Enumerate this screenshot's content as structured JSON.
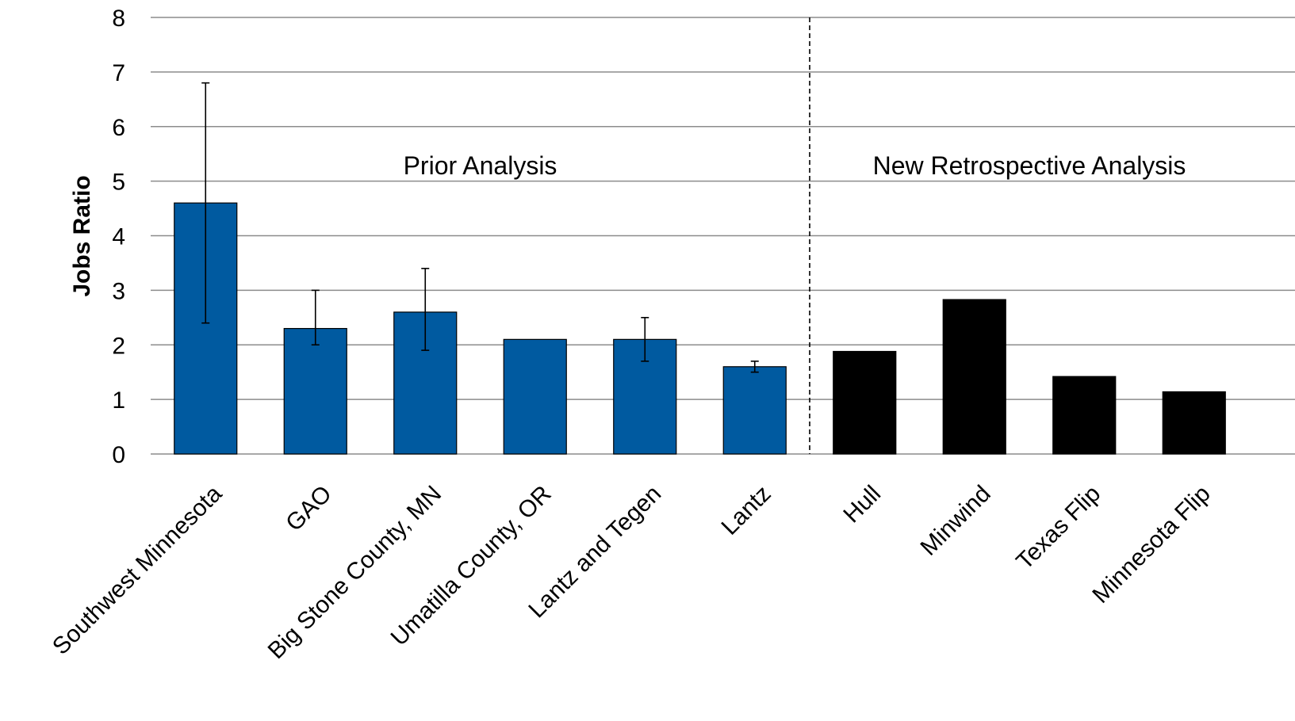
{
  "chart_data": {
    "type": "bar",
    "title": "",
    "xlabel": "",
    "ylabel": "Jobs Ratio",
    "ylim": [
      0,
      8
    ],
    "yticks": [
      "0",
      "1",
      "2",
      "3",
      "4",
      "5",
      "6",
      "7",
      "8"
    ],
    "grid": true,
    "categories": [
      "Southwest Minnesota",
      "GAO",
      "Big Stone County, MN",
      "Umatilla County, OR",
      "Lantz and Tegen",
      "Lantz",
      "Hull",
      "Minwind",
      "Texas Flip",
      "Minnesota Flip"
    ],
    "values": [
      4.6,
      2.3,
      2.6,
      2.1,
      2.1,
      1.6,
      1.88,
      2.83,
      1.42,
      1.14
    ],
    "error_low": [
      2.4,
      2.0,
      1.9,
      null,
      1.7,
      1.5,
      null,
      null,
      null,
      null
    ],
    "error_high": [
      6.8,
      3.0,
      3.4,
      null,
      2.5,
      1.7,
      null,
      null,
      null,
      null
    ],
    "groups": [
      {
        "label": "Prior Analysis",
        "start": 0,
        "end": 5,
        "color": "#005aa0"
      },
      {
        "label": "New Retrospective Analysis",
        "start": 6,
        "end": 9,
        "color": "#000000"
      }
    ],
    "divider_after_index": 5
  },
  "colors": {
    "gridline": "#8c8c8c",
    "bar_stroke": "#000000",
    "text": "#000000"
  }
}
